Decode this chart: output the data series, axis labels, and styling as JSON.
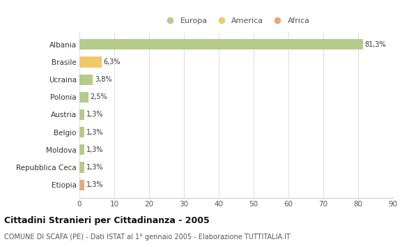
{
  "categories": [
    "Albania",
    "Brasile",
    "Ucraina",
    "Polonia",
    "Austria",
    "Belgio",
    "Moldova",
    "Repubblica Ceca",
    "Etiopia"
  ],
  "values": [
    81.3,
    6.3,
    3.8,
    2.5,
    1.3,
    1.3,
    1.3,
    1.3,
    1.3
  ],
  "labels": [
    "81,3%",
    "6,3%",
    "3,8%",
    "2,5%",
    "1,3%",
    "1,3%",
    "1,3%",
    "1,3%",
    "1,3%"
  ],
  "colors": [
    "#b5cb8b",
    "#f0c96b",
    "#b5cb8b",
    "#b5cb8b",
    "#b5cb8b",
    "#b5cb8b",
    "#b5cb8b",
    "#b5cb8b",
    "#e8a87c"
  ],
  "legend": [
    {
      "label": "Europa",
      "color": "#b5cb8b"
    },
    {
      "label": "America",
      "color": "#f0c96b"
    },
    {
      "label": "Africa",
      "color": "#e8a87c"
    }
  ],
  "title": "Cittadini Stranieri per Cittadinanza - 2005",
  "subtitle": "COMUNE DI SCAFA (PE) - Dati ISTAT al 1° gennaio 2005 - Elaborazione TUTTITALIA.IT",
  "xlim": [
    0,
    90
  ],
  "xticks": [
    0,
    10,
    20,
    30,
    40,
    50,
    60,
    70,
    80,
    90
  ],
  "background_color": "#ffffff",
  "grid_color": "#e0e0e0",
  "bar_height": 0.6
}
